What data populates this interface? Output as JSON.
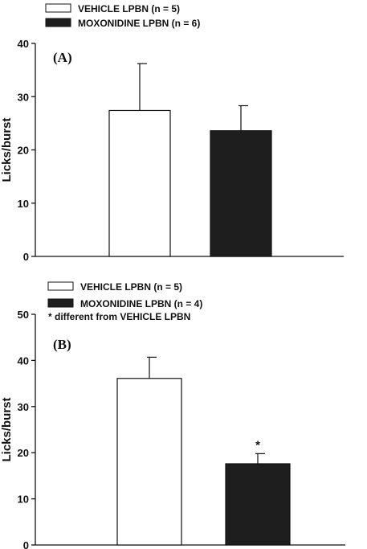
{
  "colors": {
    "vehicle": "#ffffff",
    "moxonidine": "#1e1e1e",
    "stroke": "#111111"
  },
  "chart_data": [
    {
      "type": "bar",
      "panel_label": "(A)",
      "ylabel": "Licks/burst",
      "ylim": [
        0,
        40
      ],
      "yticks": [
        0,
        10,
        20,
        30,
        40
      ],
      "grid": false,
      "legend": [
        {
          "label": "VEHICLE LPBN (n = 5)",
          "color": "#ffffff"
        },
        {
          "label": "MOXONIDINE LPBN (n = 6)",
          "color": "#1e1e1e"
        }
      ],
      "legend_placement": "top-left",
      "series": [
        {
          "name": "VEHICLE LPBN (n = 5)",
          "value": 27.4,
          "error": 8.8,
          "color": "#ffffff"
        },
        {
          "name": "MOXONIDINE LPBN (n = 6)",
          "value": 23.6,
          "error": 4.7,
          "color": "#1e1e1e"
        }
      ]
    },
    {
      "type": "bar",
      "panel_label": "(B)",
      "ylabel": "Licks/burst",
      "ylim": [
        0,
        50
      ],
      "yticks": [
        0,
        10,
        20,
        30,
        40,
        50
      ],
      "grid": false,
      "legend": [
        {
          "label": "VEHICLE LPBN (n = 5)",
          "color": "#ffffff"
        },
        {
          "label": "MOXONIDINE LPBN (n = 4)",
          "color": "#1e1e1e"
        }
      ],
      "legend_placement": "top-left",
      "footnote": "* different from VEHICLE LPBN",
      "series": [
        {
          "name": "VEHICLE LPBN (n = 5)",
          "value": 36.1,
          "error": 4.6,
          "color": "#ffffff"
        },
        {
          "name": "MOXONIDINE LPBN (n = 4)",
          "value": 17.6,
          "error": 2.2,
          "color": "#1e1e1e",
          "annotation": "*"
        }
      ]
    }
  ]
}
